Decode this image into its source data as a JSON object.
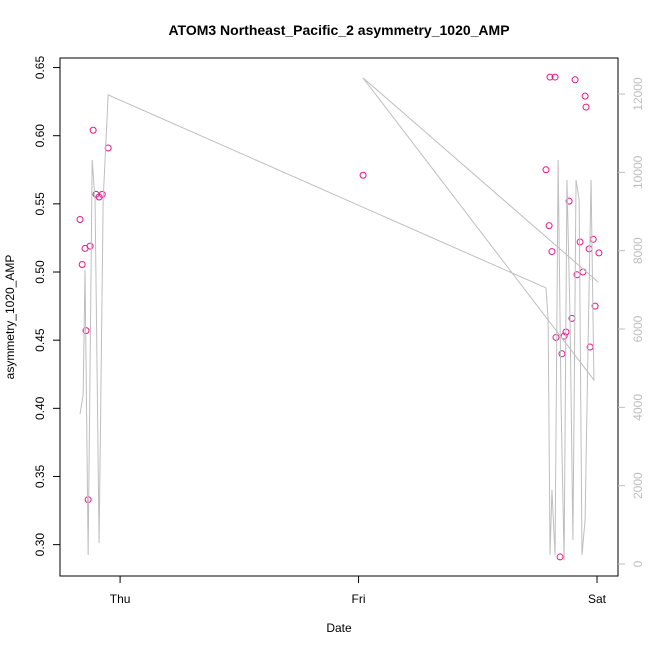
{
  "chart_data": {
    "type": "scatter",
    "title": "ATOM3 Northeast_Pacific_2 asymmetry_1020_AMP",
    "xlabel": "Date",
    "ylabel": "asymmetry_1020_AMP",
    "xlim": [
      -0.252,
      2.088
    ],
    "xticks": [
      {
        "value": 0,
        "label": "Thu"
      },
      {
        "value": 1,
        "label": "Fri"
      },
      {
        "value": 2,
        "label": "Sat"
      }
    ],
    "ylim": [
      0.277,
      0.657
    ],
    "yticks": [
      {
        "value": 0.3,
        "label": "0.30"
      },
      {
        "value": 0.35,
        "label": "0.35"
      },
      {
        "value": 0.4,
        "label": "0.40"
      },
      {
        "value": 0.45,
        "label": "0.45"
      },
      {
        "value": 0.5,
        "label": "0.50"
      },
      {
        "value": 0.55,
        "label": "0.55"
      },
      {
        "value": 0.6,
        "label": "0.60"
      },
      {
        "value": 0.65,
        "label": "0.65"
      }
    ],
    "y2lim": [
      -306,
      12920
    ],
    "y2ticks": [
      0,
      2000,
      4000,
      6000,
      8000,
      10000,
      12000
    ],
    "series": [
      {
        "type": "scatter",
        "color": "#e6168e",
        "x": [
          -0.168,
          -0.159,
          -0.147,
          -0.143,
          -0.134,
          -0.126,
          -0.113,
          -0.101,
          -0.088,
          -0.075,
          -0.05,
          1.019,
          1.786,
          1.799,
          1.803,
          1.811,
          1.824,
          1.828,
          1.845,
          1.853,
          1.862,
          1.87,
          1.883,
          1.895,
          1.908,
          1.916,
          1.929,
          1.941,
          1.95,
          1.954,
          1.967,
          1.971,
          1.984,
          1.992,
          2.008
        ],
        "values": [
          0.5385,
          0.5055,
          0.5173,
          0.457,
          0.333,
          0.519,
          0.604,
          0.557,
          0.555,
          0.557,
          0.591,
          0.571,
          0.575,
          0.534,
          0.643,
          0.515,
          0.643,
          0.452,
          0.291,
          0.44,
          0.453,
          0.456,
          0.552,
          0.466,
          0.641,
          0.498,
          0.522,
          0.5,
          0.629,
          0.621,
          0.517,
          0.445,
          0.524,
          0.475,
          0.514
        ]
      },
      {
        "type": "line",
        "color": "#bebebe",
        "axis": "y2",
        "x": [
          -0.168,
          -0.155,
          -0.147,
          -0.134,
          -0.117,
          -0.105,
          -0.088,
          -0.071,
          -0.05,
          1.786,
          1.795,
          1.803,
          1.811,
          1.824,
          1.837,
          1.849,
          1.862,
          1.874,
          1.887,
          1.899,
          1.912,
          1.925,
          1.937,
          1.95,
          1.962,
          1.975,
          1.987,
          1.019,
          2.004
        ],
        "values": [
          3831,
          4316,
          7509,
          230,
          10318,
          9297,
          536,
          9297,
          11978,
          7049,
          6232,
          230,
          1890,
          230,
          10318,
          4189,
          102,
          9807,
          6232,
          613,
          9807,
          9297,
          230,
          1124,
          5466,
          9807,
          4699,
          12412,
          7202
        ]
      }
    ]
  }
}
